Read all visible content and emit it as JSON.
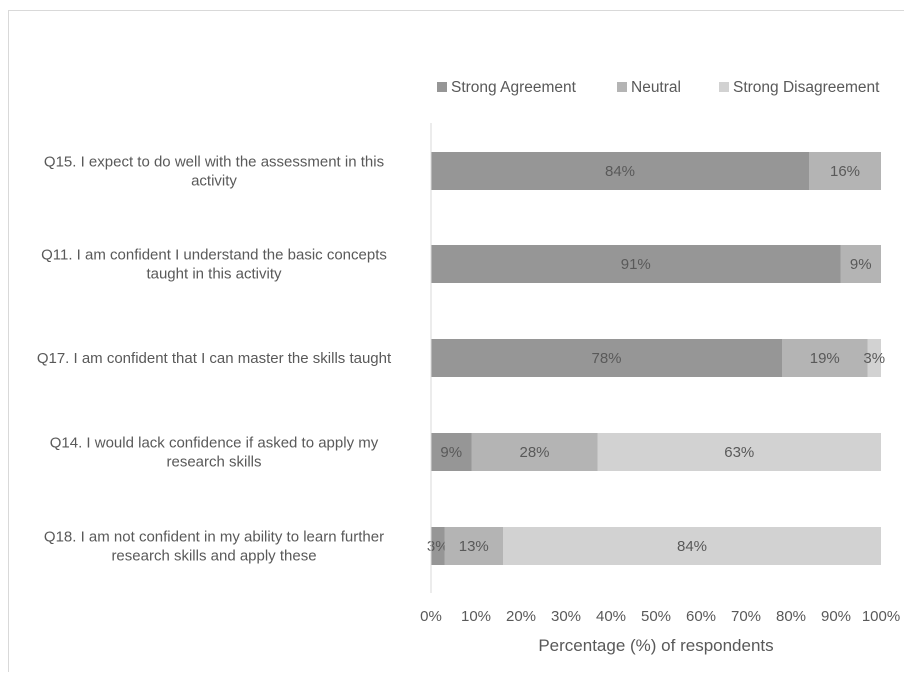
{
  "chart_data": {
    "type": "bar",
    "orientation": "horizontal",
    "stacked": true,
    "title": "",
    "xlabel": "Percentage (%) of respondents",
    "ylabel": "",
    "xlim": [
      0,
      100
    ],
    "x_ticks": [
      "0%",
      "10%",
      "20%",
      "30%",
      "40%",
      "50%",
      "60%",
      "70%",
      "80%",
      "90%",
      "100%"
    ],
    "grid": false,
    "legend_position": "top",
    "categories": [
      [
        "Q15. I expect to do well with the assessment in this",
        "activity"
      ],
      [
        "Q11. I am confident I understand the basic concepts",
        "taught in this activity"
      ],
      [
        "Q17. I am confident that I can master the skills taught"
      ],
      [
        "Q14. I would lack confidence if asked to apply my",
        "research skills"
      ],
      [
        "Q18. I am not confident in my ability to learn further",
        "research skills and apply these"
      ]
    ],
    "series": [
      {
        "name": "Strong Agreement",
        "color": "#969696",
        "values": [
          84,
          91,
          78,
          9,
          3
        ],
        "labels": [
          "84%",
          "91%",
          "78%",
          "9%",
          "3%"
        ]
      },
      {
        "name": "Neutral",
        "color": "#b4b4b4",
        "values": [
          16,
          9,
          19,
          28,
          13
        ],
        "labels": [
          "16%",
          "9%",
          "19%",
          "28%",
          "13%"
        ]
      },
      {
        "name": "Strong Disagreement",
        "color": "#d2d2d2",
        "values": [
          0,
          0,
          3,
          63,
          84
        ],
        "labels": [
          "",
          "",
          "3%",
          "63%",
          "84%"
        ]
      }
    ]
  }
}
